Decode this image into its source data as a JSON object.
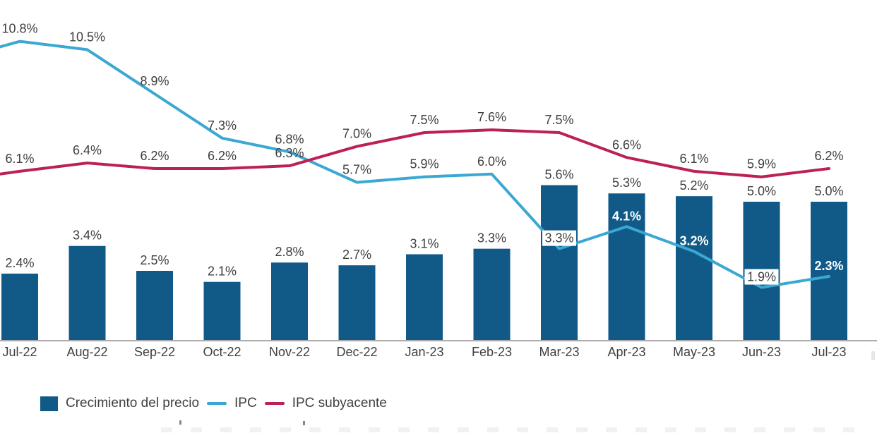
{
  "legend": {
    "bar_label": "Crecimiento del precio",
    "ipc_label": "IPC",
    "core_label": "IPC subyacente"
  },
  "colors": {
    "bar": "#115A88",
    "ipc_line": "#3AA8D2",
    "core_line": "#BB2158",
    "label_text": "#3F3F3F",
    "axis_line": "#8F8F8F",
    "white_label": "#FFFFFF",
    "boxed_label_bg": "#FFFFFF"
  },
  "chart_data": {
    "type": "bar+line combo",
    "title": "",
    "xlabel": "",
    "ylabel": "",
    "unit": "%",
    "grid": false,
    "legend_position": "bottom-left",
    "ylim": [
      0,
      12.3
    ],
    "clipped_left": true,
    "categories": [
      "Jul-22",
      "Aug-22",
      "Sep-22",
      "Oct-22",
      "Nov-22",
      "Dec-22",
      "Jan-23",
      "Feb-23",
      "Mar-23",
      "Apr-23",
      "May-23",
      "Jun-23",
      "Jul-23"
    ],
    "series": [
      {
        "name": "Crecimiento del precio",
        "type": "bar",
        "values": [
          2.4,
          3.4,
          2.5,
          2.1,
          2.8,
          2.7,
          3.1,
          3.3,
          5.6,
          5.3,
          5.2,
          5.0,
          5.0
        ]
      },
      {
        "name": "IPC",
        "type": "line",
        "values": [
          10.8,
          10.5,
          8.9,
          7.3,
          6.8,
          5.7,
          5.9,
          6.0,
          3.3,
          4.1,
          3.2,
          1.9,
          2.3
        ],
        "label_styles": [
          "above",
          "above",
          "above",
          "above",
          "above",
          "above",
          "above",
          "above",
          "boxed",
          "white-bold",
          "white-bold",
          "boxed",
          "white-bold"
        ],
        "left_edge_entry_value": 10.6
      },
      {
        "name": "IPC subyacente",
        "type": "line",
        "values": [
          6.1,
          6.4,
          6.2,
          6.2,
          6.3,
          7.0,
          7.5,
          7.6,
          7.5,
          6.6,
          6.1,
          5.9,
          6.2
        ],
        "label_styles": [
          "above",
          "above",
          "above",
          "above",
          "above",
          "above",
          "above",
          "above",
          "above",
          "above",
          "above",
          "above",
          "above"
        ],
        "left_edge_entry_value": 6.0
      }
    ]
  }
}
